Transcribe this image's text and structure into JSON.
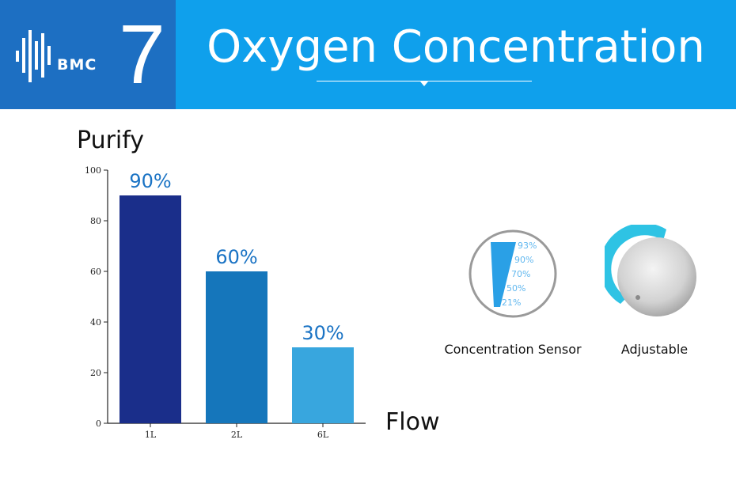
{
  "header": {
    "logo_text": "BMC",
    "number": "7",
    "title": "Oxygen Concentration"
  },
  "colors": {
    "header_left": "#1d6fc2",
    "header_right": "#0fa0ec",
    "bar_1L": "#1a2e8a",
    "bar_2L": "#1576bb",
    "bar_6L": "#38a6de",
    "value_label": "#1a73c4"
  },
  "chart_data": {
    "type": "bar",
    "categories": [
      "1L",
      "2L",
      "6L"
    ],
    "values": [
      90,
      60,
      30
    ],
    "data_labels": [
      "90%",
      "60%",
      "30%"
    ],
    "ylabel": "Purify",
    "xlabel": "Flow",
    "ylim": [
      0,
      100
    ],
    "yticks": [
      0,
      20,
      40,
      60,
      80,
      100
    ],
    "grid": false
  },
  "features": {
    "sensor": {
      "label": "Concentration Sensor",
      "icon": "concentration-gauge-icon",
      "levels": [
        "93%",
        "90%",
        "70%",
        "50%",
        "21%"
      ]
    },
    "adjustable": {
      "label": "Adjustable",
      "icon": "adjustment-knob-icon"
    }
  }
}
